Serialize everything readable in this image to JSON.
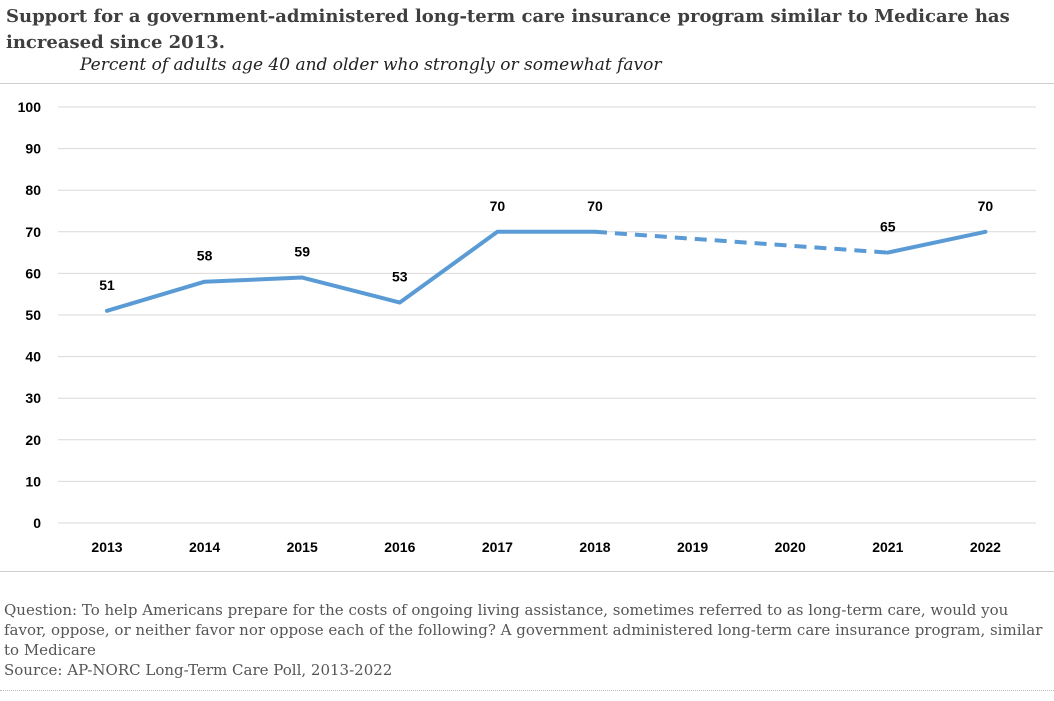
{
  "title": "Support for a government-administered long-term care insurance program similar to Medicare has increased since 2013.",
  "subtitle": "Percent of adults age 40 and older who strongly or somewhat favor",
  "notes": {
    "question": "Question: To help Americans prepare for the costs of ongoing living assistance, sometimes referred to as long-term care, would you favor, oppose, or neither favor nor oppose each of the following? A government administered long-term care insurance program, similar to Medicare",
    "source": "Source: AP-NORC Long-Term Care Poll, 2013-2022"
  },
  "chart_data": {
    "type": "line",
    "title": "Support for a government-administered long-term care insurance program similar to Medicare has increased since 2013.",
    "subtitle": "Percent of adults age 40 and older who strongly or somewhat favor",
    "categories": [
      "2013",
      "2014",
      "2015",
      "2016",
      "2017",
      "2018",
      "2019",
      "2020",
      "2021",
      "2022"
    ],
    "series": [
      {
        "values": [
          51,
          58,
          59,
          53,
          70,
          70,
          null,
          null,
          65,
          70
        ],
        "color": "#5b9bd5",
        "dashed_gap": [
          "2018",
          "2021"
        ]
      }
    ],
    "ylim": [
      0,
      100
    ],
    "yticks": [
      0,
      10,
      20,
      30,
      40,
      50,
      60,
      70,
      80,
      90,
      100
    ],
    "grid": true,
    "legend": "none"
  }
}
